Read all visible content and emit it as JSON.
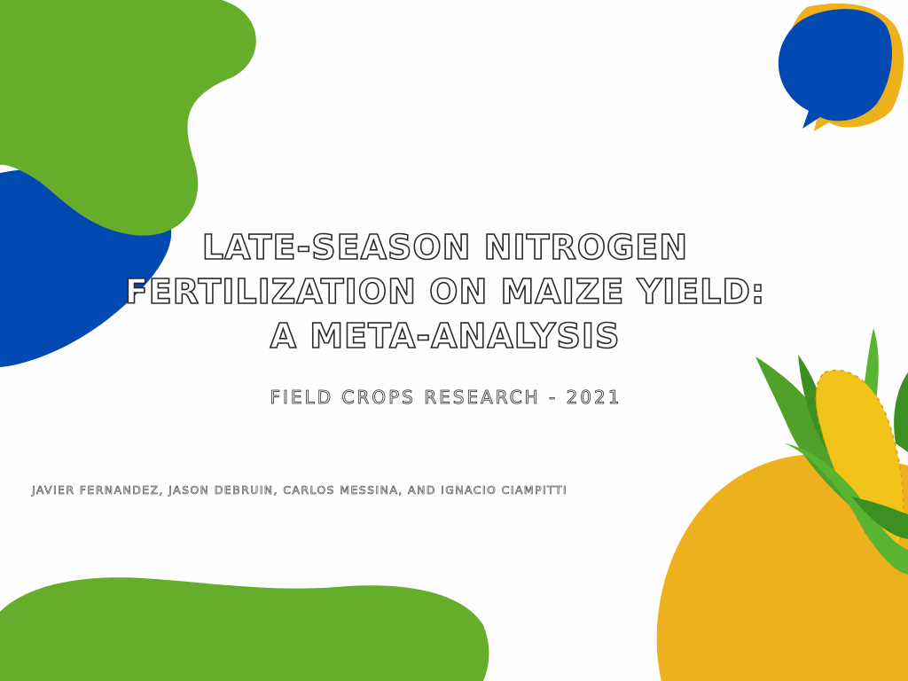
{
  "slide": {
    "title_lines": [
      "LATE-SEASON NITROGEN",
      "FERTILIZATION ON MAIZE YIELD:",
      "A META-ANALYSIS"
    ],
    "journal": "FIELD CROPS RESEARCH - 2021",
    "authors": "JAVIER FERNANDEZ, JASON DEBRUIN, CARLOS MESSINA, AND IGNACIO CIAMPITTI"
  },
  "colors": {
    "green": "#66ad2c",
    "blue": "#0249b2",
    "yellow": "#ecb11c",
    "background": "#fefefe"
  },
  "decor": {
    "top_right_shape": "speech-bubble",
    "bottom_right_image": "corn-cob"
  }
}
